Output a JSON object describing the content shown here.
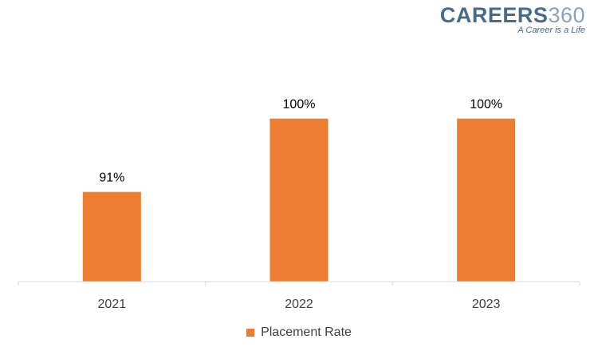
{
  "logo": {
    "word": "CAREERS",
    "number": "360",
    "tagline": "A Career is a Life"
  },
  "chart_data": {
    "type": "bar",
    "categories": [
      "2021",
      "2022",
      "2023"
    ],
    "series": [
      {
        "name": "Placement Rate",
        "values": [
          91,
          100,
          100
        ],
        "labels": [
          "91%",
          "100%",
          "100%"
        ],
        "color": "#ED7D31"
      }
    ],
    "title": "",
    "xlabel": "",
    "ylabel": "",
    "ylim": [
      80,
      103
    ],
    "grid": false,
    "legend": "bottom"
  }
}
